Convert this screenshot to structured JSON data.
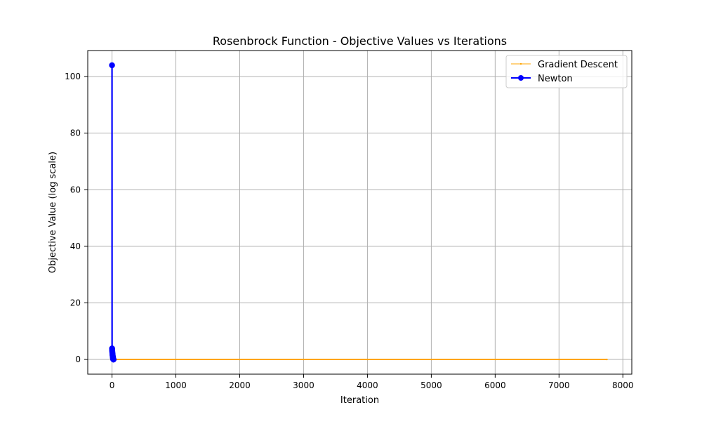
{
  "chart_data": {
    "type": "line",
    "title": "Rosenbrock Function - Objective Values vs Iterations",
    "xlabel": "Iteration",
    "ylabel": "Objective Value (log scale)",
    "xlim": [
      -380,
      8140
    ],
    "ylim": [
      -5.2,
      109.2
    ],
    "xticks": [
      0,
      1000,
      2000,
      3000,
      4000,
      5000,
      6000,
      7000,
      8000
    ],
    "yticks": [
      0,
      20,
      40,
      60,
      80,
      100
    ],
    "grid": true,
    "legend_position": "top-right",
    "colors": {
      "gradient_descent": "#ffa500",
      "newton": "#0000ff",
      "grid": "#b0b0b0"
    },
    "series": [
      {
        "name": "Gradient Descent",
        "color": "#ffa500",
        "marker": "small-dot",
        "x": [
          0,
          1000,
          2000,
          3000,
          4000,
          5000,
          6000,
          7000,
          7750
        ],
        "y": [
          0,
          0,
          0,
          0,
          0,
          0,
          0,
          0,
          0
        ]
      },
      {
        "name": "Newton",
        "color": "#0000ff",
        "marker": "circle",
        "x": [
          0,
          1,
          2,
          3,
          4,
          5,
          6,
          7,
          8,
          9,
          10,
          11,
          12,
          13,
          14,
          15,
          16,
          17,
          18,
          19,
          20,
          21,
          22,
          23,
          24
        ],
        "y": [
          104,
          3.9,
          3.5,
          3.1,
          2.8,
          2.5,
          2.2,
          2.0,
          1.8,
          1.6,
          1.4,
          1.2,
          1.0,
          0.85,
          0.7,
          0.55,
          0.4,
          0.3,
          0.2,
          0.12,
          0.06,
          0.02,
          0.005,
          0.001,
          0
        ]
      }
    ]
  }
}
